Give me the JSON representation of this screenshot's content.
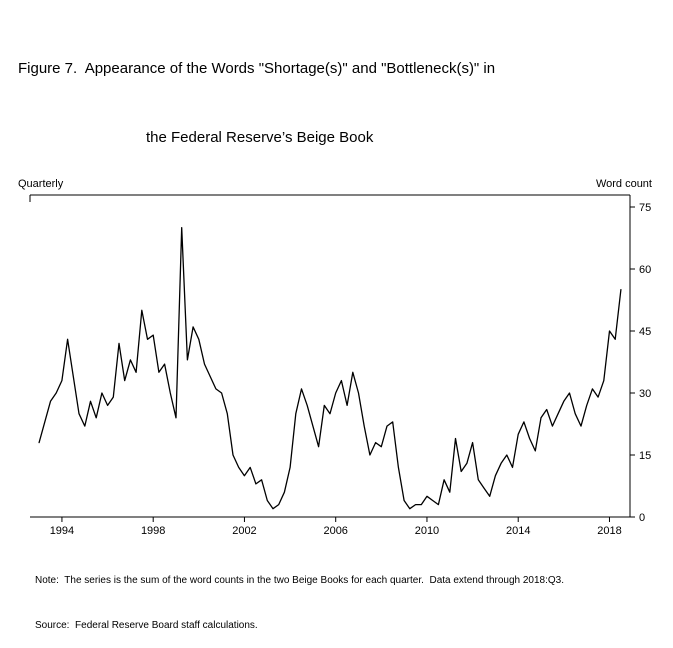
{
  "title": {
    "line1": "Figure 7.  Appearance of the Words \"Shortage(s)\" and \"Bottleneck(s)\" in",
    "line2": "the Federal Reserve’s Beige Book"
  },
  "axis_labels": {
    "left": "Quarterly",
    "right": "Word count"
  },
  "notes": {
    "note": "Note:  The series is the sum of the word counts in the two Beige Books for each quarter.  Data extend through 2018:Q3.",
    "source": "Source:  Federal Reserve Board staff calculations."
  },
  "chart_data": {
    "type": "line",
    "title": "Appearance of the Words \"Shortage(s)\" and \"Bottleneck(s)\" in the Federal Reserve's Beige Book",
    "xlabel": "Quarterly",
    "ylabel": "Word count",
    "ylim": [
      0,
      75
    ],
    "yticks": [
      0,
      15,
      30,
      45,
      60,
      75
    ],
    "xticks": [
      1994,
      1998,
      2002,
      2006,
      2010,
      2014,
      2018
    ],
    "start_year": 1993,
    "start_quarter": 1,
    "end_period": "2018:Q3",
    "line_color": "#000000",
    "grid": false,
    "legend": "none",
    "series": [
      {
        "name": "Sum of word counts of Shortage(s) and Bottleneck(s) in two Beige Books per quarter",
        "values": [
          18,
          23,
          28,
          30,
          33,
          43,
          34,
          25,
          22,
          28,
          24,
          30,
          27,
          29,
          42,
          33,
          38,
          35,
          50,
          43,
          44,
          35,
          37,
          30,
          24,
          70,
          38,
          46,
          43,
          37,
          34,
          31,
          30,
          25,
          15,
          12,
          10,
          12,
          8,
          9,
          4,
          2,
          3,
          6,
          12,
          25,
          31,
          27,
          22,
          17,
          27,
          25,
          30,
          33,
          27,
          35,
          30,
          22,
          15,
          18,
          17,
          22,
          23,
          12,
          4,
          2,
          3,
          3,
          5,
          4,
          3,
          9,
          6,
          19,
          11,
          13,
          18,
          9,
          7,
          5,
          10,
          13,
          15,
          12,
          20,
          23,
          19,
          16,
          24,
          26,
          22,
          25,
          28,
          30,
          25,
          22,
          27,
          31,
          29,
          33,
          45,
          43,
          55
        ]
      }
    ]
  }
}
